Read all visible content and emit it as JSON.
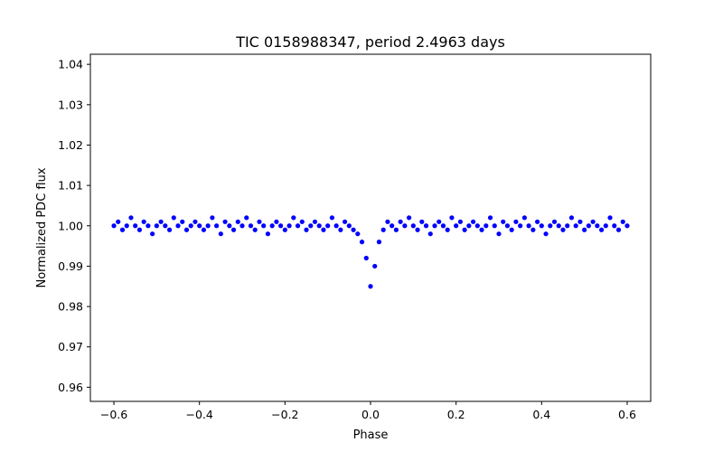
{
  "chart_data": {
    "type": "scatter",
    "title": "TIC 0158988347, period 2.4963 days",
    "xlabel": "Phase",
    "ylabel": "Normalized PDC flux",
    "xlim": [
      -0.655,
      0.655
    ],
    "ylim": [
      0.9565,
      1.0425
    ],
    "xticks": [
      -0.6,
      -0.4,
      -0.2,
      0.0,
      0.2,
      0.4,
      0.6
    ],
    "xtick_labels": [
      "−0.6",
      "−0.4",
      "−0.2",
      "0.0",
      "0.2",
      "0.4",
      "0.6"
    ],
    "yticks": [
      0.96,
      0.97,
      0.98,
      0.99,
      1.0,
      1.01,
      1.02,
      1.03,
      1.04
    ],
    "ytick_labels": [
      "0.96",
      "0.97",
      "0.98",
      "0.99",
      "1.00",
      "1.01",
      "1.02",
      "1.03",
      "1.04"
    ],
    "grid": false,
    "marker_color": "#0000ff",
    "series": [
      {
        "x": [
          -0.6,
          -0.59,
          -0.58,
          -0.57,
          -0.56,
          -0.55,
          -0.54,
          -0.53,
          -0.52,
          -0.51,
          -0.5,
          -0.49,
          -0.48,
          -0.47,
          -0.46,
          -0.45,
          -0.44,
          -0.43,
          -0.42,
          -0.41,
          -0.4,
          -0.39,
          -0.38,
          -0.37,
          -0.36,
          -0.35,
          -0.34,
          -0.33,
          -0.32,
          -0.31,
          -0.3,
          -0.29,
          -0.28,
          -0.27,
          -0.26,
          -0.25,
          -0.24,
          -0.23,
          -0.22,
          -0.21,
          -0.2,
          -0.19,
          -0.18,
          -0.17,
          -0.16,
          -0.15,
          -0.14,
          -0.13,
          -0.12,
          -0.11,
          -0.1,
          -0.09,
          -0.08,
          -0.07,
          -0.06,
          -0.05,
          -0.04,
          -0.03,
          -0.02,
          -0.01,
          0.0,
          0.01,
          0.02,
          0.03,
          0.04,
          0.05,
          0.06,
          0.07,
          0.08,
          0.09,
          0.1,
          0.11,
          0.12,
          0.13,
          0.14,
          0.15,
          0.16,
          0.17,
          0.18,
          0.19,
          0.2,
          0.21,
          0.22,
          0.23,
          0.24,
          0.25,
          0.26,
          0.27,
          0.28,
          0.29,
          0.3,
          0.31,
          0.32,
          0.33,
          0.34,
          0.35,
          0.36,
          0.37,
          0.38,
          0.39,
          0.4,
          0.41,
          0.42,
          0.43,
          0.44,
          0.45,
          0.46,
          0.47,
          0.48,
          0.49,
          0.5,
          0.51,
          0.52,
          0.53,
          0.54,
          0.55,
          0.56,
          0.57,
          0.58,
          0.59,
          0.6
        ],
        "y": [
          1.0,
          1.001,
          0.999,
          1.0,
          1.002,
          1.0,
          0.999,
          1.001,
          1.0,
          0.998,
          1.0,
          1.001,
          1.0,
          0.999,
          1.002,
          1.0,
          1.001,
          0.999,
          1.0,
          1.001,
          1.0,
          0.999,
          1.0,
          1.002,
          1.0,
          0.998,
          1.001,
          1.0,
          0.999,
          1.001,
          1.0,
          1.002,
          1.0,
          0.999,
          1.001,
          1.0,
          0.998,
          1.0,
          1.001,
          1.0,
          0.999,
          1.0,
          1.002,
          1.0,
          1.001,
          0.999,
          1.0,
          1.001,
          1.0,
          0.999,
          1.0,
          1.002,
          1.0,
          0.999,
          1.001,
          1.0,
          0.999,
          0.998,
          0.996,
          0.992,
          0.985,
          0.99,
          0.996,
          0.999,
          1.001,
          1.0,
          0.999,
          1.001,
          1.0,
          1.002,
          1.0,
          0.999,
          1.001,
          1.0,
          0.998,
          1.0,
          1.001,
          1.0,
          0.999,
          1.002,
          1.0,
          1.001,
          0.999,
          1.0,
          1.001,
          1.0,
          0.999,
          1.0,
          1.002,
          1.0,
          0.998,
          1.001,
          1.0,
          0.999,
          1.001,
          1.0,
          1.002,
          1.0,
          0.999,
          1.001,
          1.0,
          0.998,
          1.0,
          1.001,
          1.0,
          0.999,
          1.0,
          1.002,
          1.0,
          1.001,
          0.999,
          1.0,
          1.001,
          1.0,
          0.999,
          1.0,
          1.002,
          1.0,
          0.999,
          1.001,
          1.0
        ]
      }
    ]
  }
}
